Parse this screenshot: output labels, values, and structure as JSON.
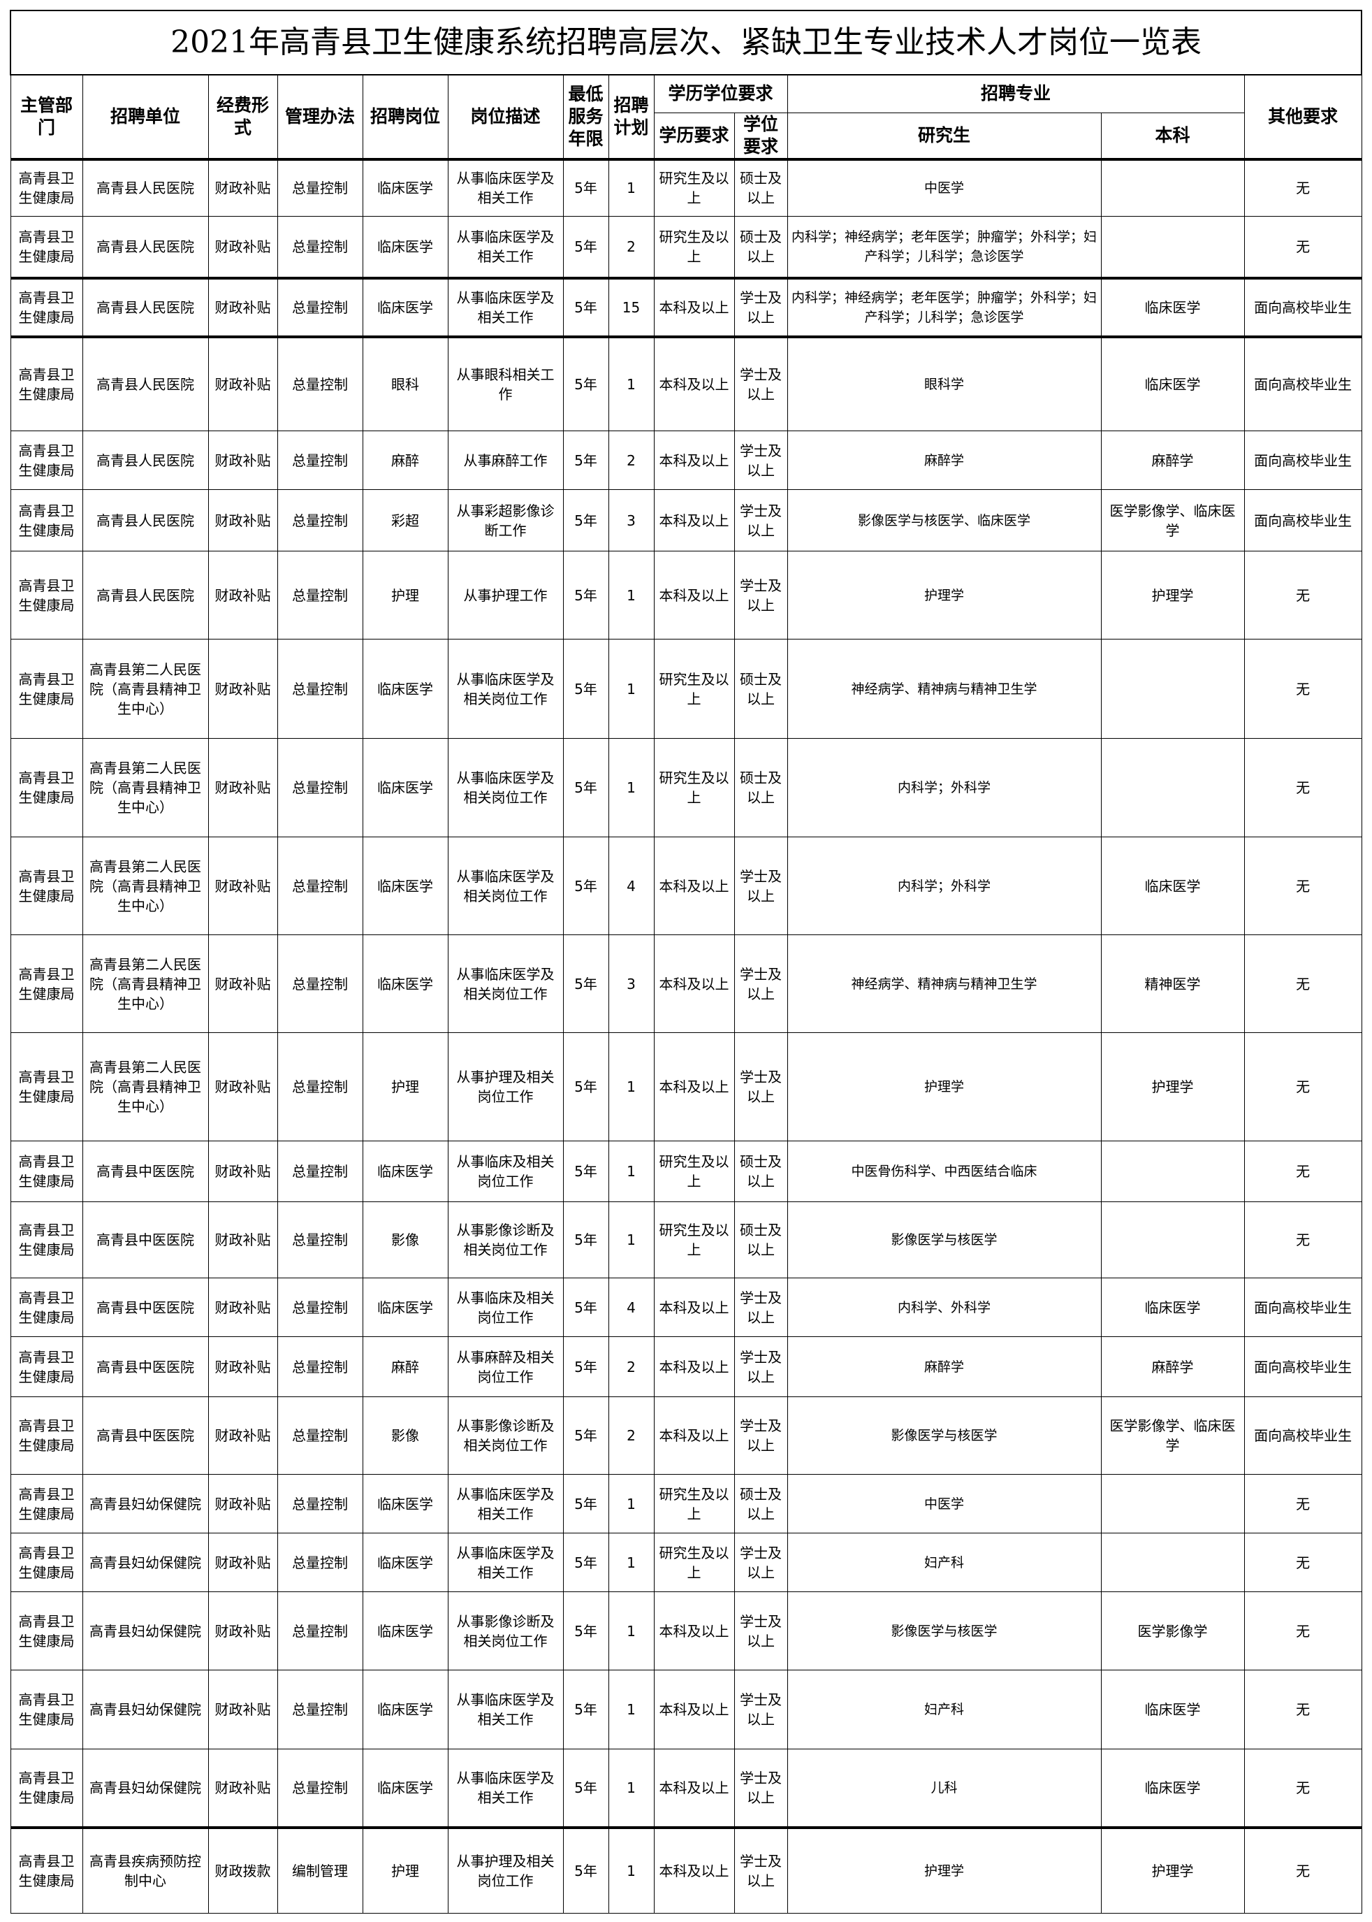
{
  "title": "2021年高青县卫生健康系统招聘高层次、紧缺卫生专业技术人才岗位一览表",
  "headers": {
    "dept": "主管部门",
    "unit": "招聘单位",
    "funding": "经费形式",
    "management": "管理办法",
    "position": "招聘岗位",
    "description": "岗位描述",
    "service_years": "最低服务年限",
    "plan": "招聘计划",
    "edu_group": "学历学位要求",
    "education": "学历要求",
    "degree": "学位要求",
    "major_group": "招聘专业",
    "graduate": "研究生",
    "undergrad": "本科",
    "other": "其他要求"
  },
  "rows": [
    {
      "dept": "高青县卫生健康局",
      "unit": "高青县人民医院",
      "funding": "财政补贴",
      "management": "总量控制",
      "position": "临床医学",
      "description": "从事临床医学及相关工作",
      "years": "5年",
      "plan": "1",
      "education": "研究生及以上",
      "degree": "硕士及以上",
      "graduate": "中医学",
      "undergrad": "",
      "other": "无"
    },
    {
      "dept": "高青县卫生健康局",
      "unit": "高青县人民医院",
      "funding": "财政补贴",
      "management": "总量控制",
      "position": "临床医学",
      "description": "从事临床医学及相关工作",
      "years": "5年",
      "plan": "2",
      "education": "研究生及以上",
      "degree": "硕士及以上",
      "graduate": "内科学；神经病学；老年医学；肿瘤学；外科学；妇产科学；儿科学；急诊医学",
      "undergrad": "",
      "other": "无"
    },
    {
      "dept": "高青县卫生健康局",
      "unit": "高青县人民医院",
      "funding": "财政补贴",
      "management": "总量控制",
      "position": "临床医学",
      "description": "从事临床医学及相关工作",
      "years": "5年",
      "plan": "15",
      "education": "本科及以上",
      "degree": "学士及以上",
      "graduate": "内科学；神经病学；老年医学；肿瘤学；外科学；妇产科学；儿科学；急诊医学",
      "undergrad": "临床医学",
      "other": "面向高校毕业生"
    },
    {
      "dept": "高青县卫生健康局",
      "unit": "高青县人民医院",
      "funding": "财政补贴",
      "management": "总量控制",
      "position": "眼科",
      "description": "从事眼科相关工作",
      "years": "5年",
      "plan": "1",
      "education": "本科及以上",
      "degree": "学士及以上",
      "graduate": "眼科学",
      "undergrad": "临床医学",
      "other": "面向高校毕业生"
    },
    {
      "dept": "高青县卫生健康局",
      "unit": "高青县人民医院",
      "funding": "财政补贴",
      "management": "总量控制",
      "position": "麻醉",
      "description": "从事麻醉工作",
      "years": "5年",
      "plan": "2",
      "education": "本科及以上",
      "degree": "学士及以上",
      "graduate": "麻醉学",
      "undergrad": "麻醉学",
      "other": "面向高校毕业生"
    },
    {
      "dept": "高青县卫生健康局",
      "unit": "高青县人民医院",
      "funding": "财政补贴",
      "management": "总量控制",
      "position": "彩超",
      "description": "从事彩超影像诊断工作",
      "years": "5年",
      "plan": "3",
      "education": "本科及以上",
      "degree": "学士及以上",
      "graduate": "影像医学与核医学、临床医学",
      "undergrad": "医学影像学、临床医学",
      "other": "面向高校毕业生"
    },
    {
      "dept": "高青县卫生健康局",
      "unit": "高青县人民医院",
      "funding": "财政补贴",
      "management": "总量控制",
      "position": "护理",
      "description": "从事护理工作",
      "years": "5年",
      "plan": "1",
      "education": "本科及以上",
      "degree": "学士及以上",
      "graduate": "护理学",
      "undergrad": "护理学",
      "other": "无"
    },
    {
      "dept": "高青县卫生健康局",
      "unit": "高青县第二人民医院（高青县精神卫生中心）",
      "funding": "财政补贴",
      "management": "总量控制",
      "position": "临床医学",
      "description": "从事临床医学及相关岗位工作",
      "years": "5年",
      "plan": "1",
      "education": "研究生及以上",
      "degree": "硕士及以上",
      "graduate": "神经病学、精神病与精神卫生学",
      "undergrad": "",
      "other": "无"
    },
    {
      "dept": "高青县卫生健康局",
      "unit": "高青县第二人民医院（高青县精神卫生中心）",
      "funding": "财政补贴",
      "management": "总量控制",
      "position": "临床医学",
      "description": "从事临床医学及相关岗位工作",
      "years": "5年",
      "plan": "1",
      "education": "研究生及以上",
      "degree": "硕士及以上",
      "graduate": "内科学；外科学",
      "undergrad": "",
      "other": "无"
    },
    {
      "dept": "高青县卫生健康局",
      "unit": "高青县第二人民医院（高青县精神卫生中心）",
      "funding": "财政补贴",
      "management": "总量控制",
      "position": "临床医学",
      "description": "从事临床医学及相关岗位工作",
      "years": "5年",
      "plan": "4",
      "education": "本科及以上",
      "degree": "学士及以上",
      "graduate": "内科学；外科学",
      "undergrad": "临床医学",
      "other": "无"
    },
    {
      "dept": "高青县卫生健康局",
      "unit": "高青县第二人民医院（高青县精神卫生中心）",
      "funding": "财政补贴",
      "management": "总量控制",
      "position": "临床医学",
      "description": "从事临床医学及相关岗位工作",
      "years": "5年",
      "plan": "3",
      "education": "本科及以上",
      "degree": "学士及以上",
      "graduate": "神经病学、精神病与精神卫生学",
      "undergrad": "精神医学",
      "other": "无"
    },
    {
      "dept": "高青县卫生健康局",
      "unit": "高青县第二人民医院（高青县精神卫生中心）",
      "funding": "财政补贴",
      "management": "总量控制",
      "position": "护理",
      "description": "从事护理及相关岗位工作",
      "years": "5年",
      "plan": "1",
      "education": "本科及以上",
      "degree": "学士及以上",
      "graduate": "护理学",
      "undergrad": "护理学",
      "other": "无"
    },
    {
      "dept": "高青县卫生健康局",
      "unit": "高青县中医医院",
      "funding": "财政补贴",
      "management": "总量控制",
      "position": "临床医学",
      "description": "从事临床及相关岗位工作",
      "years": "5年",
      "plan": "1",
      "education": "研究生及以上",
      "degree": "硕士及以上",
      "graduate": "中医骨伤科学、中西医结合临床",
      "undergrad": "",
      "other": "无"
    },
    {
      "dept": "高青县卫生健康局",
      "unit": "高青县中医医院",
      "funding": "财政补贴",
      "management": "总量控制",
      "position": "影像",
      "description": "从事影像诊断及相关岗位工作",
      "years": "5年",
      "plan": "1",
      "education": "研究生及以上",
      "degree": "硕士及以上",
      "graduate": "影像医学与核医学",
      "undergrad": "",
      "other": "无"
    },
    {
      "dept": "高青县卫生健康局",
      "unit": "高青县中医医院",
      "funding": "财政补贴",
      "management": "总量控制",
      "position": "临床医学",
      "description": "从事临床及相关岗位工作",
      "years": "5年",
      "plan": "4",
      "education": "本科及以上",
      "degree": "学士及以上",
      "graduate": "内科学、外科学",
      "undergrad": "临床医学",
      "other": "面向高校毕业生"
    },
    {
      "dept": "高青县卫生健康局",
      "unit": "高青县中医医院",
      "funding": "财政补贴",
      "management": "总量控制",
      "position": "麻醉",
      "description": "从事麻醉及相关岗位工作",
      "years": "5年",
      "plan": "2",
      "education": "本科及以上",
      "degree": "学士及以上",
      "graduate": "麻醉学",
      "undergrad": "麻醉学",
      "other": "面向高校毕业生"
    },
    {
      "dept": "高青县卫生健康局",
      "unit": "高青县中医医院",
      "funding": "财政补贴",
      "management": "总量控制",
      "position": "影像",
      "description": "从事影像诊断及相关岗位工作",
      "years": "5年",
      "plan": "2",
      "education": "本科及以上",
      "degree": "学士及以上",
      "graduate": "影像医学与核医学",
      "undergrad": "医学影像学、临床医学",
      "other": "面向高校毕业生"
    },
    {
      "dept": "高青县卫生健康局",
      "unit": "高青县妇幼保健院",
      "funding": "财政补贴",
      "management": "总量控制",
      "position": "临床医学",
      "description": "从事临床医学及相关工作",
      "years": "5年",
      "plan": "1",
      "education": "研究生及以上",
      "degree": "硕士及以上",
      "graduate": "中医学",
      "undergrad": "",
      "other": "无"
    },
    {
      "dept": "高青县卫生健康局",
      "unit": "高青县妇幼保健院",
      "funding": "财政补贴",
      "management": "总量控制",
      "position": "临床医学",
      "description": "从事临床医学及相关工作",
      "years": "5年",
      "plan": "1",
      "education": "研究生及以上",
      "degree": "学士及以上",
      "graduate": "妇产科",
      "undergrad": "",
      "other": "无"
    },
    {
      "dept": "高青县卫生健康局",
      "unit": "高青县妇幼保健院",
      "funding": "财政补贴",
      "management": "总量控制",
      "position": "临床医学",
      "description": "从事影像诊断及相关岗位工作",
      "years": "5年",
      "plan": "1",
      "education": "本科及以上",
      "degree": "学士及以上",
      "graduate": "影像医学与核医学",
      "undergrad": "医学影像学",
      "other": "无"
    },
    {
      "dept": "高青县卫生健康局",
      "unit": "高青县妇幼保健院",
      "funding": "财政补贴",
      "management": "总量控制",
      "position": "临床医学",
      "description": "从事临床医学及相关工作",
      "years": "5年",
      "plan": "1",
      "education": "本科及以上",
      "degree": "学士及以上",
      "graduate": "妇产科",
      "undergrad": "临床医学",
      "other": "无"
    },
    {
      "dept": "高青县卫生健康局",
      "unit": "高青县妇幼保健院",
      "funding": "财政补贴",
      "management": "总量控制",
      "position": "临床医学",
      "description": "从事临床医学及相关工作",
      "years": "5年",
      "plan": "1",
      "education": "本科及以上",
      "degree": "学士及以上",
      "graduate": "儿科",
      "undergrad": "临床医学",
      "other": "无"
    },
    {
      "dept": "高青县卫生健康局",
      "unit": "高青县疾病预防控制中心",
      "funding": "财政拨款",
      "management": "编制管理",
      "position": "护理",
      "description": "从事护理及相关岗位工作",
      "years": "5年",
      "plan": "1",
      "education": "本科及以上",
      "degree": "学士及以上",
      "graduate": "护理学",
      "undergrad": "护理学",
      "other": "无"
    }
  ]
}
